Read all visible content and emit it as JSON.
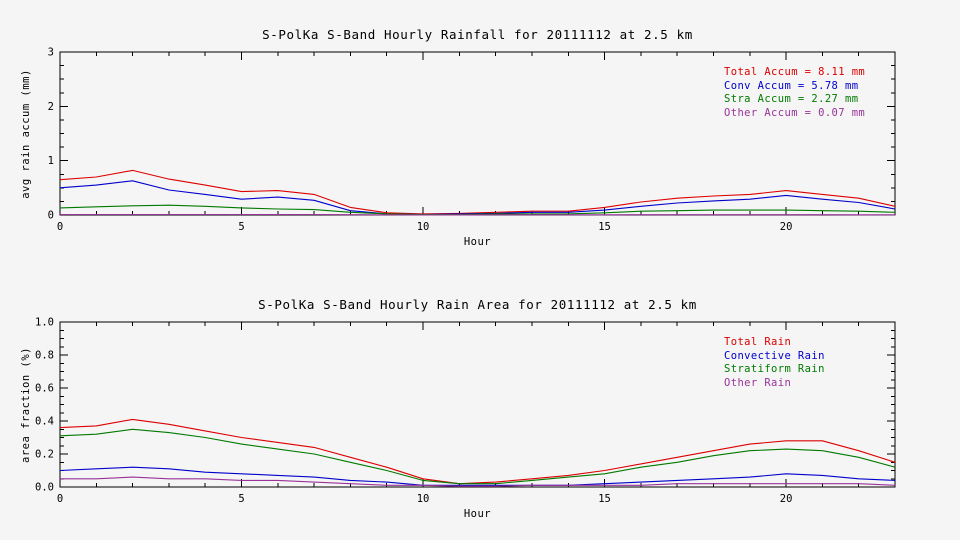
{
  "colors": {
    "background": "#f5f5f5",
    "axis": "#000000",
    "total": "#dd0000",
    "convective": "#0000cc",
    "stratiform": "#007a00",
    "other": "#993399"
  },
  "chart_data": [
    {
      "type": "line",
      "title": "S-PolKa S-Band Hourly Rainfall for 20111112 at 2.5 km",
      "xlabel": "Hour",
      "ylabel": "avg rain accum (mm)",
      "xlim": [
        0,
        23
      ],
      "ylim": [
        0,
        3
      ],
      "x_major_ticks": [
        0,
        5,
        10,
        15,
        20
      ],
      "x_tick_labels": [
        "0",
        "5",
        "10",
        "15",
        "20"
      ],
      "x_minor_step": 1,
      "y_major_ticks": [
        0,
        1,
        2,
        3
      ],
      "y_tick_labels": [
        "0",
        "1",
        "2",
        "3"
      ],
      "y_minor_step": 0.25,
      "grid": false,
      "legend_position": "upper right",
      "legend": [
        {
          "label": "Total Accum = 8.11 mm",
          "color": "#dd0000"
        },
        {
          "label": "Conv Accum = 5.78 mm",
          "color": "#0000cc"
        },
        {
          "label": "Stra Accum = 2.27 mm",
          "color": "#007a00"
        },
        {
          "label": "Other Accum = 0.07 mm",
          "color": "#993399"
        }
      ],
      "x": [
        0,
        1,
        2,
        3,
        4,
        5,
        6,
        7,
        8,
        9,
        10,
        11,
        12,
        13,
        14,
        15,
        16,
        17,
        18,
        19,
        20,
        21,
        22,
        23
      ],
      "series": [
        {
          "name": "Total Accum",
          "color": "#dd0000",
          "values": [
            0.65,
            0.7,
            0.82,
            0.66,
            0.55,
            0.43,
            0.45,
            0.38,
            0.14,
            0.04,
            0.02,
            0.03,
            0.05,
            0.07,
            0.07,
            0.14,
            0.24,
            0.31,
            0.35,
            0.38,
            0.45,
            0.38,
            0.31,
            0.16
          ]
        },
        {
          "name": "Conv Accum",
          "color": "#0000cc",
          "values": [
            0.5,
            0.55,
            0.63,
            0.46,
            0.38,
            0.29,
            0.33,
            0.27,
            0.08,
            0.02,
            0.01,
            0.02,
            0.03,
            0.05,
            0.05,
            0.09,
            0.16,
            0.22,
            0.26,
            0.29,
            0.36,
            0.29,
            0.23,
            0.11
          ]
        },
        {
          "name": "Stra Accum",
          "color": "#007a00",
          "values": [
            0.13,
            0.15,
            0.17,
            0.18,
            0.16,
            0.13,
            0.11,
            0.1,
            0.05,
            0.02,
            0.01,
            0.01,
            0.02,
            0.02,
            0.02,
            0.04,
            0.07,
            0.08,
            0.09,
            0.09,
            0.09,
            0.08,
            0.07,
            0.05
          ]
        },
        {
          "name": "Other Accum",
          "color": "#993399",
          "values": [
            0.01,
            0.01,
            0.01,
            0.01,
            0.01,
            0.01,
            0.01,
            0.01,
            0.005,
            0.003,
            0.002,
            0.002,
            0.003,
            0.003,
            0.003,
            0.004,
            0.005,
            0.005,
            0.005,
            0.005,
            0.005,
            0.005,
            0.004,
            0.003
          ]
        }
      ]
    },
    {
      "type": "line",
      "title": "S-PolKa S-Band Hourly Rain Area for 20111112 at 2.5 km",
      "xlabel": "Hour",
      "ylabel": "area fraction (%)",
      "xlim": [
        0,
        23
      ],
      "ylim": [
        0,
        1.0
      ],
      "x_major_ticks": [
        0,
        5,
        10,
        15,
        20
      ],
      "x_tick_labels": [
        "0",
        "5",
        "10",
        "15",
        "20"
      ],
      "x_minor_step": 1,
      "y_major_ticks": [
        0,
        0.2,
        0.4,
        0.6,
        0.8,
        1.0
      ],
      "y_tick_labels": [
        "0.0",
        "0.2",
        "0.4",
        "0.6",
        "0.8",
        "1.0"
      ],
      "y_minor_step": 0.05,
      "grid": false,
      "legend_position": "upper right",
      "legend": [
        {
          "label": "Total Rain",
          "color": "#dd0000"
        },
        {
          "label": "Convective Rain",
          "color": "#0000cc"
        },
        {
          "label": "Stratiform Rain",
          "color": "#007a00"
        },
        {
          "label": "Other Rain",
          "color": "#993399"
        }
      ],
      "x": [
        0,
        1,
        2,
        3,
        4,
        5,
        6,
        7,
        8,
        9,
        10,
        11,
        12,
        13,
        14,
        15,
        16,
        17,
        18,
        19,
        20,
        21,
        22,
        23
      ],
      "series": [
        {
          "name": "Total Rain",
          "color": "#dd0000",
          "values": [
            0.36,
            0.37,
            0.41,
            0.38,
            0.34,
            0.3,
            0.27,
            0.24,
            0.18,
            0.12,
            0.05,
            0.02,
            0.03,
            0.05,
            0.07,
            0.1,
            0.14,
            0.18,
            0.22,
            0.26,
            0.28,
            0.28,
            0.22,
            0.15
          ]
        },
        {
          "name": "Stratiform Rain",
          "color": "#007a00",
          "values": [
            0.31,
            0.32,
            0.35,
            0.33,
            0.3,
            0.26,
            0.23,
            0.2,
            0.15,
            0.1,
            0.04,
            0.02,
            0.02,
            0.04,
            0.06,
            0.08,
            0.12,
            0.15,
            0.19,
            0.22,
            0.23,
            0.22,
            0.18,
            0.12
          ]
        },
        {
          "name": "Convective Rain",
          "color": "#0000cc",
          "values": [
            0.1,
            0.11,
            0.12,
            0.11,
            0.09,
            0.08,
            0.07,
            0.06,
            0.04,
            0.03,
            0.01,
            0.01,
            0.01,
            0.01,
            0.01,
            0.02,
            0.03,
            0.04,
            0.05,
            0.06,
            0.08,
            0.07,
            0.05,
            0.04
          ]
        },
        {
          "name": "Other Rain",
          "color": "#993399",
          "values": [
            0.05,
            0.05,
            0.06,
            0.05,
            0.05,
            0.04,
            0.04,
            0.03,
            0.02,
            0.01,
            0.01,
            0.005,
            0.005,
            0.01,
            0.01,
            0.01,
            0.01,
            0.02,
            0.02,
            0.02,
            0.02,
            0.02,
            0.02,
            0.01
          ]
        }
      ]
    }
  ]
}
